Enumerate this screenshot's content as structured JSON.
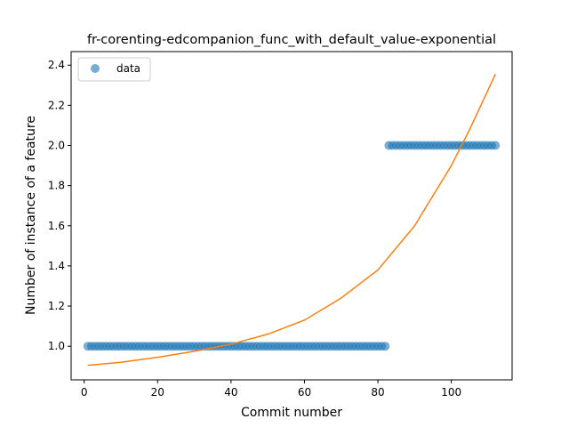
{
  "chart_data": {
    "type": "scatter",
    "title": "fr-corenting-edcompanion_func_with_default_value-exponential",
    "xlabel": "Commit number",
    "ylabel": "Number of instance of a feature",
    "xlim": [
      -3.55,
      116.55
    ],
    "ylim": [
      0.8325,
      2.4675
    ],
    "xticks": [
      0,
      20,
      40,
      60,
      80,
      100
    ],
    "yticks": [
      1.0,
      1.2,
      1.4,
      1.6,
      1.8,
      2.0,
      2.2,
      2.4
    ],
    "xtick_labels": [
      "0",
      "20",
      "40",
      "60",
      "80",
      "100"
    ],
    "ytick_labels": [
      "1.0",
      "1.2",
      "1.4",
      "1.6",
      "1.8",
      "2.0",
      "2.2",
      "2.4"
    ],
    "grid": false,
    "legend": {
      "position": "top-left",
      "entries": [
        "data"
      ]
    },
    "colors": {
      "points": "#1f77b4",
      "fit": "#ff7f0e"
    },
    "series": [
      {
        "name": "data",
        "kind": "scatter",
        "segments": [
          {
            "x_from": 1,
            "x_to": 82,
            "step": 1,
            "y": 1.0
          },
          {
            "x_from": 83,
            "x_to": 112,
            "step": 1,
            "y": 2.0
          }
        ]
      },
      {
        "kind": "line",
        "x": [
          1,
          10,
          20,
          30,
          40,
          50,
          60,
          70,
          80,
          90,
          100,
          105,
          112
        ],
        "y": [
          0.905,
          0.92,
          0.945,
          0.975,
          1.01,
          1.06,
          1.13,
          1.24,
          1.38,
          1.6,
          1.9,
          2.08,
          2.355
        ]
      }
    ]
  }
}
